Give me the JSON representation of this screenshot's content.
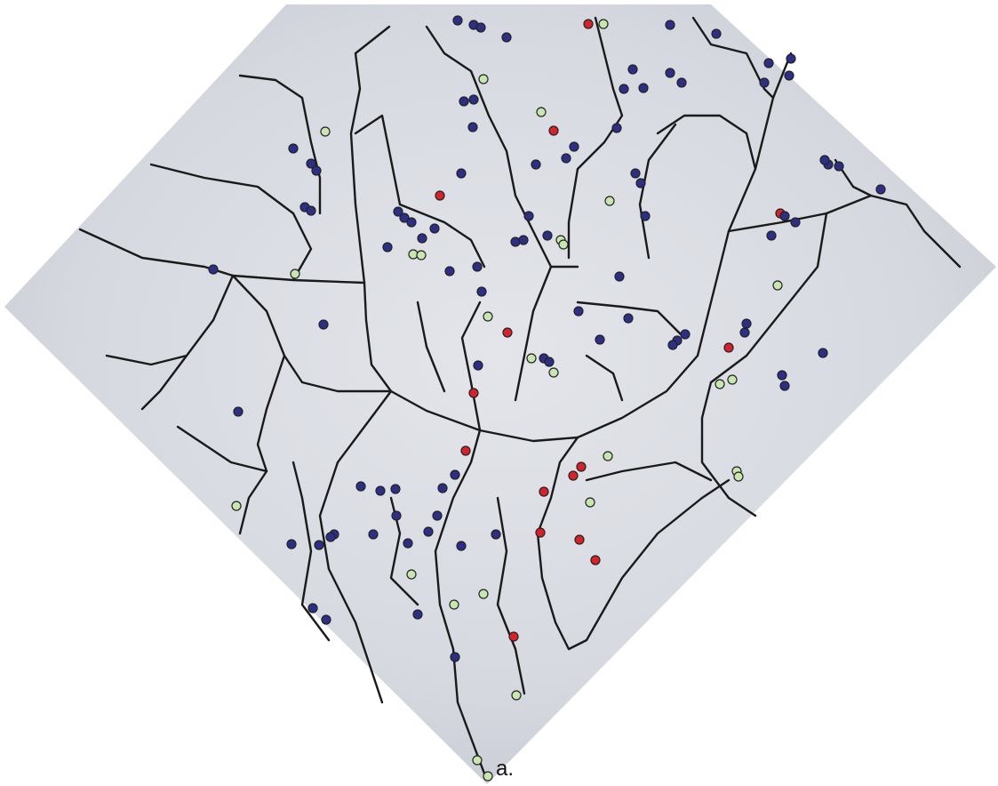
{
  "caption": "a."
}
